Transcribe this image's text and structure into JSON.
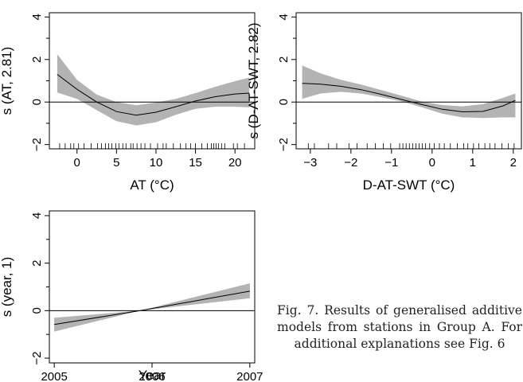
{
  "chart_data": [
    {
      "type": "line",
      "panel": "top-left",
      "xlabel": "AT (°C)",
      "ylabel": "s (AT, 2.81)",
      "xlim": [
        -3.5,
        22.5
      ],
      "ylim": [
        -2.2,
        4.2
      ],
      "xticks": [
        0,
        5,
        10,
        15,
        20
      ],
      "yticks": [
        -2,
        0,
        2,
        4
      ],
      "reference_line_y": 0,
      "series": [
        {
          "x": [
            -2.5,
            0,
            2.5,
            5,
            7.5,
            10,
            12.5,
            15,
            17.5,
            20,
            21.8
          ],
          "values": [
            1.3,
            0.6,
            0.0,
            -0.45,
            -0.62,
            -0.48,
            -0.22,
            0.05,
            0.25,
            0.38,
            0.42
          ],
          "lower": [
            0.45,
            0.15,
            -0.38,
            -0.9,
            -1.1,
            -0.95,
            -0.6,
            -0.32,
            -0.22,
            -0.22,
            -0.25
          ],
          "upper": [
            2.25,
            1.05,
            0.35,
            0.0,
            -0.15,
            -0.02,
            0.15,
            0.42,
            0.72,
            0.98,
            1.15
          ]
        }
      ],
      "rug": [
        -2.2,
        -1.5,
        -0.8,
        -0.4,
        0.2,
        0.9,
        1.8,
        2.6,
        3.1,
        3.6,
        4.0,
        4.4,
        4.9,
        5.3,
        5.8,
        6.2,
        6.8,
        7.1,
        7.6,
        8.1,
        8.6,
        9.3,
        10.2,
        10.9,
        11.3,
        12.2,
        13.1,
        13.8,
        14.4,
        15.0,
        15.8,
        16.5,
        17.0,
        17.3,
        17.6,
        17.9,
        18.3,
        18.7,
        19.8,
        20.3,
        21.2
      ]
    },
    {
      "type": "line",
      "panel": "top-right",
      "xlabel": "D-AT-SWT (°C)",
      "ylabel": "s (D-AT-SWT, 2.82)",
      "xlim": [
        -3.35,
        2.2
      ],
      "ylim": [
        -2.2,
        4.2
      ],
      "xticks": [
        -3,
        -2,
        -1,
        0,
        1,
        2
      ],
      "yticks": [
        -2,
        0,
        2,
        4
      ],
      "reference_line_y": 0,
      "series": [
        {
          "x": [
            -3.2,
            -2.75,
            -2.25,
            -1.75,
            -1.25,
            -0.75,
            -0.25,
            0.25,
            0.75,
            1.25,
            1.75,
            2.05
          ],
          "values": [
            0.88,
            0.84,
            0.74,
            0.58,
            0.36,
            0.12,
            -0.12,
            -0.34,
            -0.46,
            -0.44,
            -0.18,
            0.08
          ],
          "lower": [
            0.15,
            0.4,
            0.48,
            0.4,
            0.22,
            0.03,
            -0.25,
            -0.55,
            -0.72,
            -0.75,
            -0.72,
            -0.72
          ],
          "upper": [
            1.72,
            1.35,
            1.05,
            0.82,
            0.56,
            0.3,
            0.02,
            -0.14,
            -0.2,
            -0.1,
            0.2,
            0.4
          ]
        }
      ],
      "rug": [
        -3.05,
        -2.9,
        -2.55,
        -2.35,
        -2.05,
        -1.85,
        -1.6,
        -1.4,
        -1.2,
        -1.02,
        -0.8,
        -0.72,
        -0.64,
        -0.56,
        -0.48,
        -0.4,
        -0.32,
        -0.24,
        -0.16,
        -0.06,
        0.05,
        0.18,
        0.3,
        0.45,
        0.62,
        0.78,
        0.88,
        1.02,
        1.15,
        1.3,
        1.42,
        1.55,
        1.72,
        1.88,
        2.02
      ]
    },
    {
      "type": "line",
      "panel": "bottom-left",
      "xlabel": "Year",
      "ylabel": "s (year, 1)",
      "xlim": [
        2004.95,
        2007.05
      ],
      "ylim": [
        -2.2,
        4.2
      ],
      "xticks": [
        2005,
        2006,
        2007
      ],
      "yticks": [
        -2,
        0,
        2,
        4
      ],
      "reference_line_y": 0,
      "series": [
        {
          "x": [
            2005.0,
            2005.88,
            2007.0
          ],
          "values": [
            -0.58,
            0.0,
            0.82
          ],
          "lower": [
            -0.88,
            0.0,
            0.52
          ],
          "upper": [
            -0.3,
            0.0,
            1.15
          ]
        }
      ]
    }
  ],
  "caption": {
    "line1": "Fig. 7. Results of generalised",
    "line2": "additive models from stations",
    "line3": "in Group A. For additional",
    "line4": "explanations see Fig. 6"
  },
  "colors": {
    "band": "#b3b3b3",
    "line": "#000000"
  }
}
